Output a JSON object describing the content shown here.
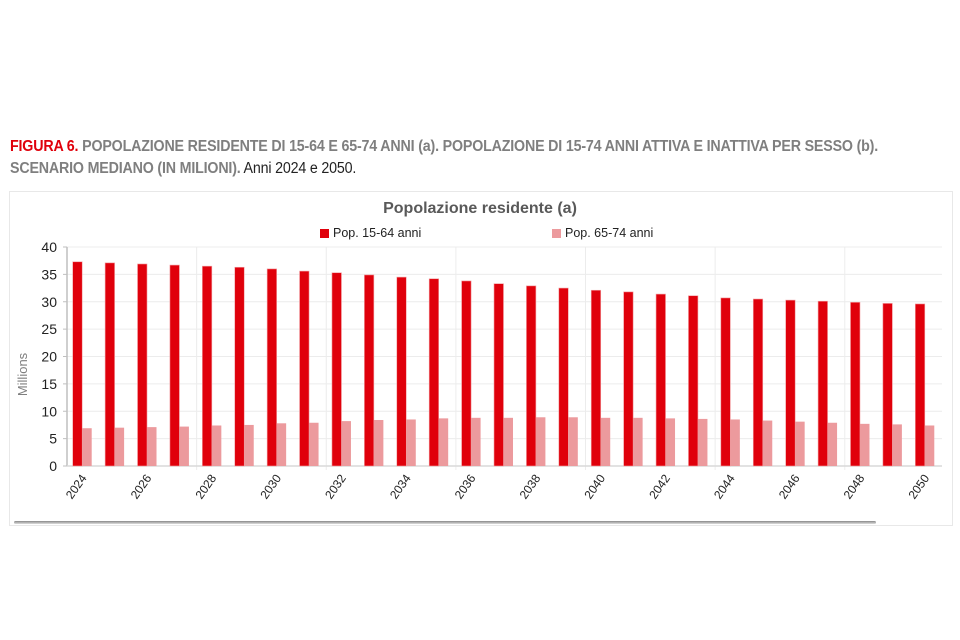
{
  "caption": {
    "figure_label": "FIGURA 6.",
    "title": " POPOLAZIONE RESIDENTE DI 15-64 E 65-74 ANNI (a). POPOLAZIONE DI 15-74 ANNI ATTIVA E INATTIVA PER SESSO (b). SCENARIO MEDIANO (IN MILIONI).",
    "years": " Anni 2024 e 2050."
  },
  "colors": {
    "series1": "#e0000b",
    "series2": "#ec9a9d",
    "grid": "#ececec",
    "axis": "#bfbfbf"
  },
  "chart_data": {
    "type": "bar",
    "title": "Popolazione residente (a)",
    "xlabel": "",
    "ylabel": "Millions",
    "ylim": [
      0,
      40
    ],
    "yticks": [
      0,
      5,
      10,
      15,
      20,
      25,
      30,
      35,
      40
    ],
    "grid": true,
    "legend_position": "top",
    "categories": [
      "2024",
      "2025",
      "2026",
      "2027",
      "2028",
      "2029",
      "2030",
      "2031",
      "2032",
      "2033",
      "2034",
      "2035",
      "2036",
      "2037",
      "2038",
      "2039",
      "2040",
      "2041",
      "2042",
      "2043",
      "2044",
      "2045",
      "2046",
      "2047",
      "2048",
      "2049",
      "2050"
    ],
    "xtick_labels": [
      "2024",
      "2026",
      "2028",
      "2030",
      "2032",
      "2034",
      "2036",
      "2038",
      "2040",
      "2042",
      "2044",
      "2046",
      "2048",
      "2050"
    ],
    "series": [
      {
        "name": "Pop. 15-64 anni",
        "values": [
          37.3,
          37.1,
          36.9,
          36.7,
          36.5,
          36.3,
          36.0,
          35.6,
          35.3,
          34.9,
          34.5,
          34.2,
          33.8,
          33.3,
          32.9,
          32.5,
          32.1,
          31.8,
          31.4,
          31.1,
          30.7,
          30.5,
          30.3,
          30.1,
          29.9,
          29.7,
          29.6
        ]
      },
      {
        "name": "Pop. 65-74 anni",
        "values": [
          6.9,
          7.0,
          7.1,
          7.2,
          7.4,
          7.5,
          7.8,
          7.9,
          8.2,
          8.4,
          8.5,
          8.7,
          8.8,
          8.8,
          8.9,
          8.9,
          8.8,
          8.8,
          8.7,
          8.6,
          8.5,
          8.3,
          8.1,
          7.9,
          7.7,
          7.6,
          7.4
        ]
      }
    ]
  }
}
